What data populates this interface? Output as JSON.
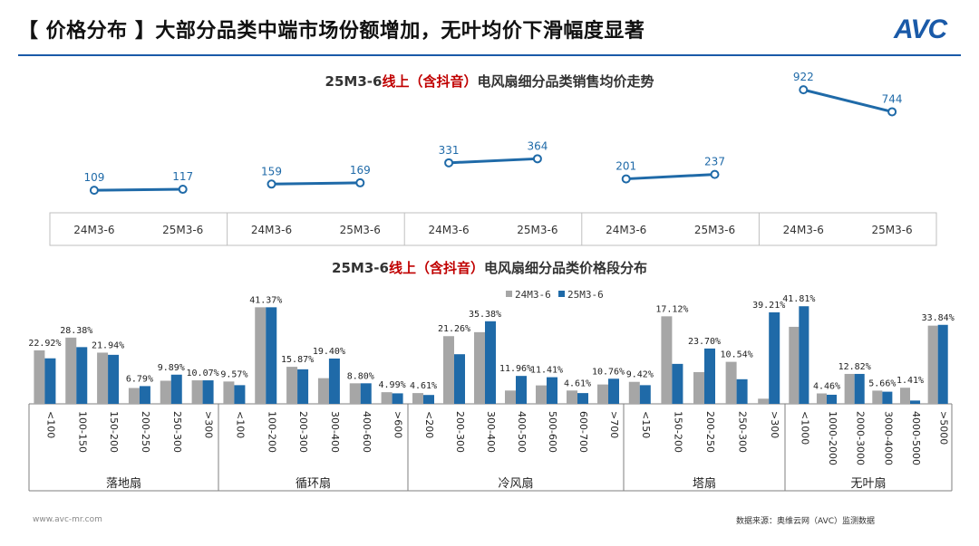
{
  "header": {
    "title": "【 价格分布 】大部分品类中端市场份额增加，无叶均价下滑幅度显著",
    "logo": "AVC"
  },
  "footer": {
    "left": "www.avc-mr.com",
    "right": "数据来源：奥维云网（AVC）监测数据"
  },
  "colors": {
    "accent": "#1a5aa8",
    "series_2024": "#a6a6a6",
    "series_2025": "#1f6aa8",
    "title_red": "#c00000"
  },
  "chart_data": [
    {
      "type": "line",
      "title_parts": [
        "25M3-6",
        "线上（含抖音）",
        "电风扇细分品类销售均价走势"
      ],
      "x": [
        "24M3-6",
        "25M3-6"
      ],
      "groups": [
        {
          "name": "落地扇",
          "values": [
            109,
            117
          ]
        },
        {
          "name": "循环扇",
          "values": [
            159,
            169
          ]
        },
        {
          "name": "冷风扇",
          "values": [
            331,
            364
          ]
        },
        {
          "name": "塔扇",
          "values": [
            201,
            237
          ]
        },
        {
          "name": "无叶扇",
          "values": [
            922,
            744
          ]
        }
      ],
      "ylim": [
        0,
        1000
      ]
    },
    {
      "type": "bar",
      "title_parts": [
        "25M3-6",
        "线上（含抖音）",
        "电风扇细分品类价格段分布"
      ],
      "legend": [
        "24M3-6",
        "25M3-6"
      ],
      "ylim": [
        0,
        45
      ],
      "groups": [
        {
          "name": "落地扇",
          "categories": [
            "<100",
            "100-150",
            "150-200",
            "200-250",
            "250-300",
            ">300"
          ],
          "series": [
            {
              "name": "24M3-6",
              "values": [
                22.92,
                28.38,
                21.94,
                6.79,
                9.89,
                10.07
              ]
            },
            {
              "name": "25M3-6",
              "values": [
                19.5,
                24.3,
                21.0,
                7.6,
                12.5,
                10.07
              ]
            }
          ],
          "labels": [
            "22.92%",
            "28.38%",
            "21.94%",
            "6.79%",
            "9.89%",
            "10.07%"
          ]
        },
        {
          "name": "循环扇",
          "categories": [
            "<100",
            "100-200",
            "200-300",
            "300-400",
            "400-600",
            ">600"
          ],
          "series": [
            {
              "name": "24M3-6",
              "values": [
                9.57,
                41.37,
                15.87,
                11.0,
                8.8,
                4.99
              ]
            },
            {
              "name": "25M3-6",
              "values": [
                8.0,
                41.37,
                14.8,
                19.4,
                8.8,
                4.5
              ]
            }
          ],
          "labels": [
            "9.57%",
            "41.37%",
            "15.87%",
            "19.40%",
            "8.80%",
            "4.99%"
          ]
        },
        {
          "name": "冷风扇",
          "categories": [
            "<200",
            "200-300",
            "300-400",
            "400-500",
            "500-600",
            "600-700",
            ">700"
          ],
          "series": [
            {
              "name": "24M3-6",
              "values": [
                4.61,
                29.0,
                30.7,
                5.7,
                7.9,
                5.7,
                8.3
              ]
            },
            {
              "name": "25M3-6",
              "values": [
                3.8,
                21.26,
                35.38,
                11.96,
                11.41,
                4.61,
                10.76
              ]
            }
          ],
          "labels": [
            "4.61%",
            "21.26%",
            "35.38%",
            "11.96%",
            "11.41%",
            "4.61%",
            "10.76%"
          ]
        },
        {
          "name": "塔扇",
          "categories": [
            "<150",
            "150-200",
            "200-250",
            "250-300",
            ">300"
          ],
          "series": [
            {
              "name": "24M3-6",
              "values": [
                9.42,
                37.5,
                13.6,
                18.0,
                2.2
              ]
            },
            {
              "name": "25M3-6",
              "values": [
                8.0,
                17.12,
                23.7,
                10.54,
                39.21
              ]
            }
          ],
          "labels": [
            "9.42%",
            "17.12%",
            "23.70%",
            "10.54%",
            "39.21%"
          ]
        },
        {
          "name": "无叶扇",
          "categories": [
            "<1000",
            "1000-2000",
            "2000-3000",
            "3000-4000",
            "4000-5000",
            ">5000"
          ],
          "series": [
            {
              "name": "24M3-6",
              "values": [
                33.0,
                4.46,
                12.82,
                5.66,
                6.9,
                33.5
              ]
            },
            {
              "name": "25M3-6",
              "values": [
                41.81,
                3.9,
                12.82,
                5.2,
                1.41,
                33.84
              ]
            }
          ],
          "labels": [
            "41.81%",
            "4.46%",
            "12.82%",
            "5.66%",
            "1.41%",
            "33.84%"
          ]
        }
      ]
    }
  ]
}
